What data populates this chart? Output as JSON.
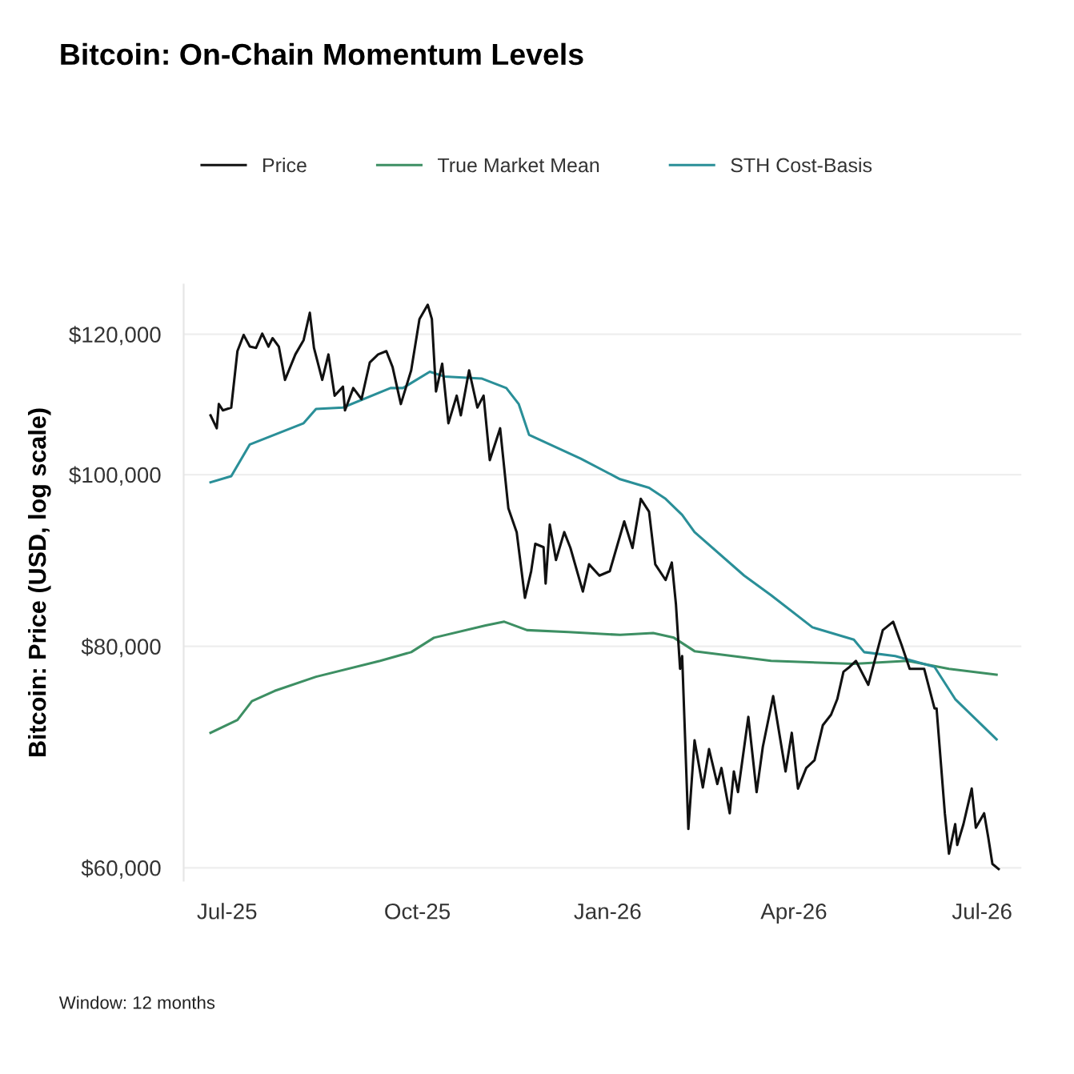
{
  "chart_data": {
    "type": "line",
    "title": "Bitcoin: On-Chain Momentum Levels",
    "ylabel": "Bitcoin: Price (USD, log scale)",
    "annotations": [
      "Window: 12 months"
    ],
    "log": "y",
    "grid": "y",
    "legend": "top",
    "line_style": "solid",
    "marker": "none",
    "xlim": [
      "2025-06-10",
      "2026-07-20"
    ],
    "xticks": [
      {
        "value": "2025-07-01",
        "label": "Jul-25"
      },
      {
        "value": "2025-10-01",
        "label": "Oct-25"
      },
      {
        "value": "2026-01-01",
        "label": "Jan-26"
      },
      {
        "value": "2026-04-01",
        "label": "Apr-26"
      },
      {
        "value": "2026-07-01",
        "label": "Jul-26"
      }
    ],
    "ylim": [
      59000,
      128000
    ],
    "yticks": [
      {
        "value": 60000,
        "label": "$60,000"
      },
      {
        "value": 80000,
        "label": "$80,000"
      },
      {
        "value": 100000,
        "label": "$100,000"
      },
      {
        "value": 120000,
        "label": "$120,000"
      }
    ],
    "series": [
      {
        "name": "Price",
        "color": "#111111",
        "x": [
          "2025-06-23",
          "2025-06-26",
          "2025-06-27",
          "2025-06-29",
          "2025-07-03",
          "2025-07-06",
          "2025-07-09",
          "2025-07-12",
          "2025-07-15",
          "2025-07-18",
          "2025-07-21",
          "2025-07-23",
          "2025-07-26",
          "2025-07-29",
          "2025-08-03",
          "2025-08-07",
          "2025-08-10",
          "2025-08-12",
          "2025-08-16",
          "2025-08-19",
          "2025-08-22",
          "2025-08-26",
          "2025-08-27",
          "2025-08-31",
          "2025-09-04",
          "2025-09-08",
          "2025-09-12",
          "2025-09-16",
          "2025-09-19",
          "2025-09-23",
          "2025-09-28",
          "2025-10-02",
          "2025-10-06",
          "2025-10-08",
          "2025-10-10",
          "2025-10-13",
          "2025-10-16",
          "2025-10-20",
          "2025-10-22",
          "2025-10-26",
          "2025-10-30",
          "2025-11-02",
          "2025-11-05",
          "2025-11-10",
          "2025-11-14",
          "2025-11-18",
          "2025-11-22",
          "2025-11-25",
          "2025-11-27",
          "2025-12-01",
          "2025-12-02",
          "2025-12-04",
          "2025-12-07",
          "2025-12-11",
          "2025-12-14",
          "2025-12-20",
          "2025-12-23",
          "2025-12-28",
          "2026-01-02",
          "2026-01-09",
          "2026-01-13",
          "2026-01-17",
          "2026-01-21",
          "2026-01-24",
          "2026-01-29",
          "2026-02-01",
          "2026-02-03",
          "2026-02-05",
          "2026-02-06",
          "2026-02-09",
          "2026-02-12",
          "2026-02-16",
          "2026-02-19",
          "2026-02-23",
          "2026-02-25",
          "2026-03-01",
          "2026-03-03",
          "2026-03-05",
          "2026-03-10",
          "2026-03-14",
          "2026-03-17",
          "2026-03-22",
          "2026-03-28",
          "2026-03-31",
          "2026-04-03",
          "2026-04-07",
          "2026-04-11",
          "2026-04-15",
          "2026-04-19",
          "2026-04-22",
          "2026-04-25",
          "2026-04-28",
          "2026-05-01",
          "2026-05-07",
          "2026-05-14",
          "2026-05-19",
          "2026-05-23",
          "2026-05-27",
          "2026-06-03",
          "2026-06-08",
          "2026-06-09",
          "2026-06-13",
          "2026-06-15",
          "2026-06-18",
          "2026-06-19",
          "2026-06-22",
          "2026-06-26",
          "2026-06-28",
          "2026-07-02",
          "2026-07-04",
          "2026-07-06",
          "2026-07-09"
        ],
        "values": [
          108000,
          106200,
          109600,
          108700,
          109100,
          117400,
          119900,
          118100,
          117900,
          120100,
          118100,
          119400,
          118100,
          113100,
          116900,
          119100,
          123400,
          117900,
          113100,
          116900,
          110800,
          112100,
          108700,
          111900,
          110300,
          115700,
          116900,
          117400,
          115000,
          109600,
          114500,
          122400,
          124700,
          122400,
          111400,
          115500,
          106900,
          110800,
          108000,
          114500,
          109100,
          110800,
          101900,
          106200,
          95700,
          92800,
          85200,
          88200,
          91400,
          91000,
          86800,
          93700,
          89500,
          92800,
          90900,
          85900,
          89000,
          87700,
          88200,
          94100,
          90900,
          96900,
          95300,
          89000,
          87200,
          89200,
          84500,
          77700,
          79000,
          63100,
          70800,
          66600,
          70000,
          66900,
          68300,
          64400,
          68000,
          66200,
          73000,
          66200,
          70200,
          75000,
          68000,
          71500,
          66500,
          68300,
          69000,
          72200,
          73200,
          74700,
          77400,
          77900,
          78500,
          76100,
          81700,
          82600,
          80200,
          77700,
          77700,
          73800,
          73800,
          64400,
          61100,
          63500,
          61800,
          63500,
          66500,
          63200,
          64400,
          62400,
          60300,
          59900
        ]
      },
      {
        "name": "True Market Mean",
        "color": "#3d8f63",
        "x": [
          "2025-06-23",
          "2025-07-06",
          "2025-07-13",
          "2025-07-24",
          "2025-08-13",
          "2025-09-13",
          "2025-09-28",
          "2025-10-09",
          "2025-11-03",
          "2025-11-12",
          "2025-11-23",
          "2025-12-13",
          "2026-01-07",
          "2026-01-23",
          "2026-02-02",
          "2026-02-12",
          "2026-03-21",
          "2026-04-30",
          "2026-05-26",
          "2026-06-15",
          "2026-07-08"
        ],
        "values": [
          71500,
          72700,
          74500,
          75500,
          76900,
          78500,
          79400,
          80900,
          82200,
          82600,
          81700,
          81500,
          81200,
          81400,
          80900,
          79500,
          78500,
          78200,
          78500,
          77700,
          77100
        ]
      },
      {
        "name": "STH Cost-Basis",
        "color": "#2a8f98",
        "x": [
          "2025-06-23",
          "2025-07-03",
          "2025-07-12",
          "2025-08-07",
          "2025-08-13",
          "2025-08-26",
          "2025-09-18",
          "2025-09-24",
          "2025-10-07",
          "2025-10-14",
          "2025-11-01",
          "2025-11-13",
          "2025-11-19",
          "2025-11-24",
          "2025-12-19",
          "2026-01-07",
          "2026-01-21",
          "2026-01-29",
          "2026-02-06",
          "2026-02-12",
          "2026-03-08",
          "2026-03-21",
          "2026-04-10",
          "2026-04-30",
          "2026-05-05",
          "2026-05-20",
          "2026-06-08",
          "2026-06-18",
          "2026-07-08"
        ],
        "values": [
          99000,
          99800,
          104000,
          106900,
          108900,
          109100,
          111900,
          111900,
          114300,
          113600,
          113300,
          111900,
          109600,
          105300,
          102100,
          99400,
          98300,
          96900,
          94900,
          92800,
          87700,
          85500,
          82000,
          80700,
          79400,
          79000,
          77900,
          74700,
          70900
        ]
      }
    ]
  }
}
